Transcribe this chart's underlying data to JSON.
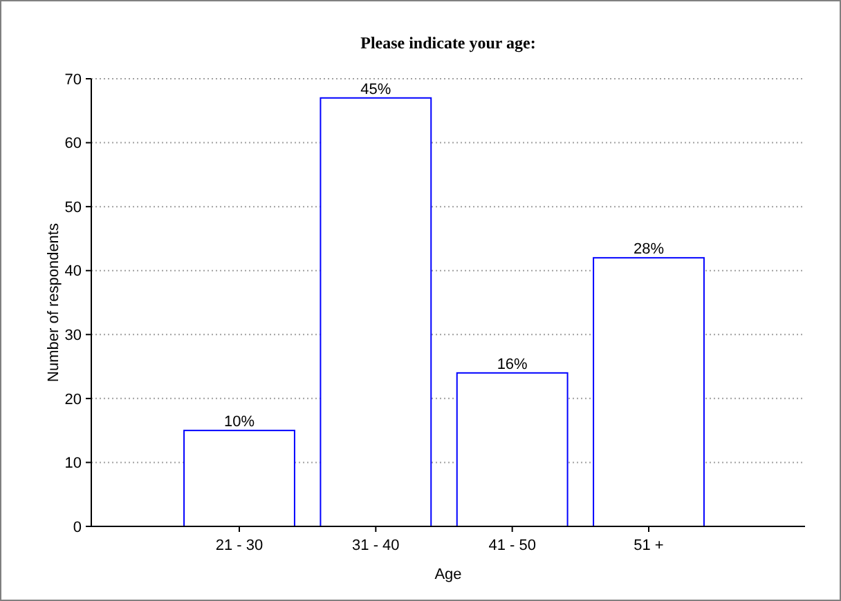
{
  "chart_data": {
    "type": "bar",
    "title": "Please indicate your age:",
    "xlabel": "Age",
    "ylabel": "Number of respondents",
    "categories": [
      "21 - 30",
      "31 - 40",
      "41 - 50",
      "51 +"
    ],
    "values": [
      15,
      67,
      24,
      42
    ],
    "annotations": [
      {
        "text": "10%",
        "x": "21 - 30",
        "y": 15
      },
      {
        "text": "45%",
        "x": "31 - 40",
        "y": 67
      },
      {
        "text": "16%",
        "x": "41 - 50",
        "y": 24
      },
      {
        "text": "28%",
        "x": "51 +",
        "y": 42
      }
    ],
    "color": "#0000ff",
    "ylim": [
      0,
      70
    ],
    "yticks": [
      0,
      10,
      20,
      30,
      40,
      50,
      60,
      70
    ],
    "grid": "y"
  }
}
